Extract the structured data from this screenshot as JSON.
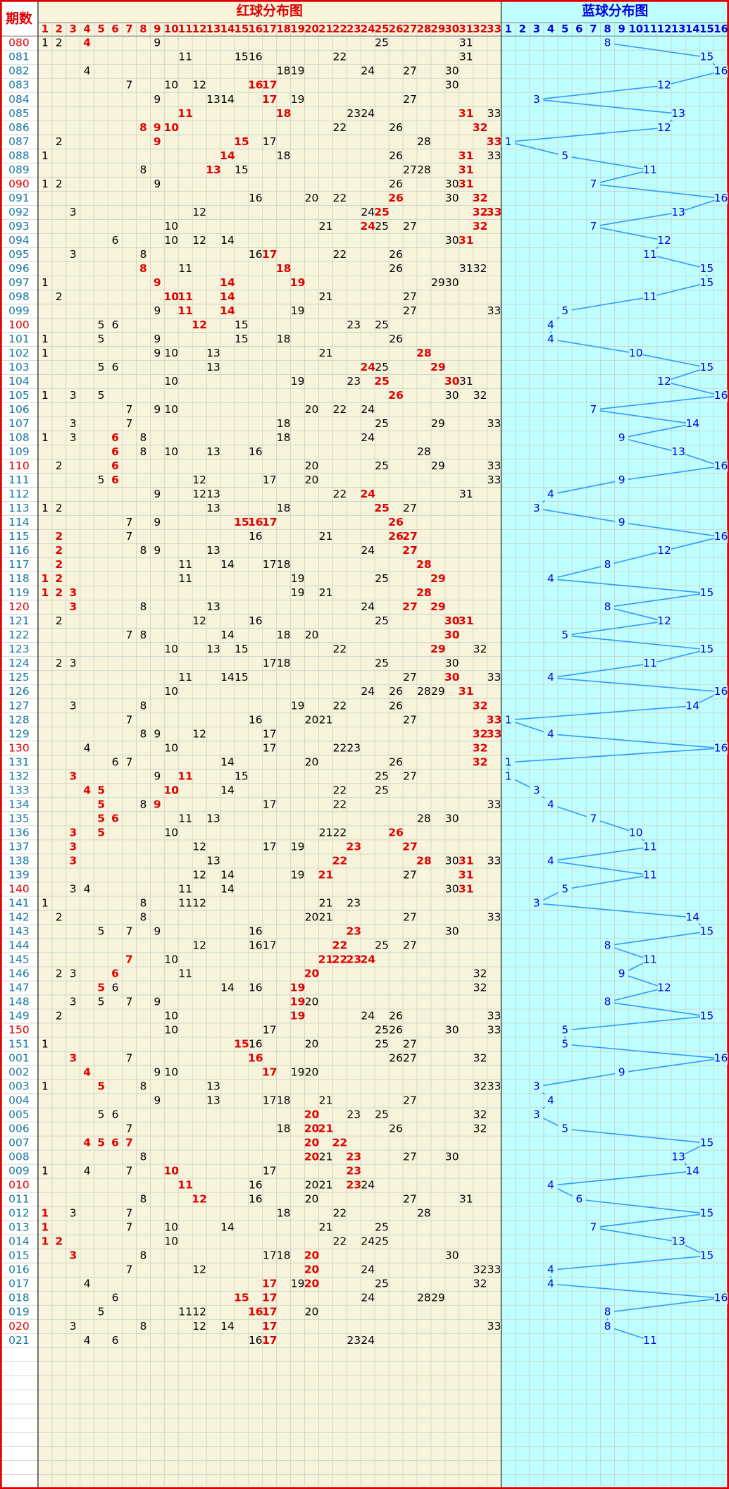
{
  "header": {
    "period_label": "期数",
    "red_title": "红球分布图",
    "blue_title": "蓝球分布图"
  },
  "red_columns": [
    1,
    2,
    3,
    4,
    5,
    6,
    7,
    8,
    9,
    10,
    11,
    12,
    13,
    14,
    15,
    16,
    17,
    18,
    19,
    20,
    21,
    22,
    23,
    24,
    25,
    26,
    27,
    28,
    29,
    30,
    31,
    32,
    33
  ],
  "blue_columns": [
    1,
    2,
    3,
    4,
    5,
    6,
    7,
    8,
    9,
    10,
    11,
    12,
    13,
    14,
    15,
    16
  ],
  "colors": {
    "red_area": "#f8f4dc",
    "blue_area": "#c0ffff",
    "grid": "#c6d2c6",
    "red_text": "#e00000",
    "blue_text": "#0000e0",
    "normal": "#000000",
    "period": "#1878a0",
    "line": "#3399ff",
    "border": "#e00000"
  },
  "rows": [
    {
      "period": "080",
      "reds": [
        1,
        2,
        4,
        9,
        25,
        31
      ],
      "highlight": [
        2
      ],
      "blue": 8,
      "period_highlight": true
    },
    {
      "period": "081",
      "reds": [
        11,
        15,
        16,
        22,
        31
      ],
      "highlight": [],
      "blue": 15
    },
    {
      "period": "082",
      "reds": [
        4,
        18,
        19,
        24,
        27,
        30
      ],
      "highlight": [],
      "blue": 16
    },
    {
      "period": "083",
      "reds": [
        7,
        10,
        12,
        16,
        17,
        30
      ],
      "highlight": [
        3,
        4
      ],
      "blue": 12
    },
    {
      "period": "084",
      "reds": [
        9,
        13,
        14,
        17,
        19,
        27
      ],
      "highlight": [
        3
      ],
      "blue": 3
    },
    {
      "period": "085",
      "reds": [
        11,
        18,
        23,
        24,
        31,
        33
      ],
      "highlight": [
        0,
        1,
        4
      ],
      "blue": 13
    },
    {
      "period": "086",
      "reds": [
        8,
        9,
        10,
        22,
        26,
        32
      ],
      "highlight": [
        0,
        1,
        2,
        5
      ],
      "blue": 12
    },
    {
      "period": "087",
      "reds": [
        2,
        9,
        15,
        17,
        28,
        33
      ],
      "highlight": [
        1,
        2,
        5
      ],
      "blue": 1
    },
    {
      "period": "088",
      "reds": [
        1,
        14,
        18,
        26,
        31,
        33
      ],
      "highlight": [
        1,
        4
      ],
      "blue": 5
    },
    {
      "period": "089",
      "reds": [
        8,
        13,
        15,
        27,
        28,
        31
      ],
      "highlight": [
        1,
        5
      ],
      "blue": 11
    },
    {
      "period": "090",
      "reds": [
        1,
        2,
        9,
        26,
        30,
        31
      ],
      "highlight": [
        5
      ],
      "blue": 7,
      "period_highlight": true
    },
    {
      "period": "091",
      "reds": [
        16,
        20,
        22,
        26,
        30,
        32
      ],
      "highlight": [
        3,
        5
      ],
      "blue": 16
    },
    {
      "period": "092",
      "reds": [
        3,
        12,
        24,
        25,
        32,
        33
      ],
      "highlight": [
        3,
        4,
        5
      ],
      "blue": 13
    },
    {
      "period": "093",
      "reds": [
        10,
        21,
        24,
        25,
        27,
        32
      ],
      "highlight": [
        2,
        5
      ],
      "blue": 7
    },
    {
      "period": "094",
      "reds": [
        6,
        10,
        12,
        14,
        30,
        31
      ],
      "highlight": [
        5
      ],
      "blue": 12
    },
    {
      "period": "095",
      "reds": [
        3,
        8,
        16,
        17,
        22,
        26
      ],
      "highlight": [
        3
      ],
      "blue": 11
    },
    {
      "period": "096",
      "reds": [
        8,
        11,
        18,
        26,
        31,
        32
      ],
      "highlight": [
        0,
        2
      ],
      "blue": 15
    },
    {
      "period": "097",
      "reds": [
        1,
        9,
        14,
        19,
        29,
        30
      ],
      "highlight": [
        1,
        2,
        3
      ],
      "blue": 15
    },
    {
      "period": "098",
      "reds": [
        2,
        10,
        11,
        14,
        21,
        27
      ],
      "highlight": [
        1,
        2,
        3
      ],
      "blue": 11
    },
    {
      "period": "099",
      "reds": [
        9,
        11,
        14,
        19,
        27,
        33
      ],
      "highlight": [
        1,
        2
      ],
      "blue": 5
    },
    {
      "period": "100",
      "reds": [
        5,
        6,
        12,
        15,
        23,
        25
      ],
      "highlight": [
        2
      ],
      "blue": 4,
      "period_highlight": true
    },
    {
      "period": "101",
      "reds": [
        1,
        5,
        9,
        15,
        18,
        26
      ],
      "highlight": [],
      "blue": 4
    },
    {
      "period": "102",
      "reds": [
        1,
        9,
        10,
        13,
        21,
        28
      ],
      "highlight": [
        5
      ],
      "blue": 10
    },
    {
      "period": "103",
      "reds": [
        5,
        6,
        13,
        24,
        25,
        29
      ],
      "highlight": [
        3,
        5
      ],
      "blue": 15
    },
    {
      "period": "104",
      "reds": [
        10,
        19,
        23,
        25,
        30,
        31
      ],
      "highlight": [
        3,
        4
      ],
      "blue": 12
    },
    {
      "period": "105",
      "reds": [
        1,
        3,
        5,
        26,
        30,
        32
      ],
      "highlight": [
        3
      ],
      "blue": 16
    },
    {
      "period": "106",
      "reds": [
        7,
        9,
        10,
        20,
        22,
        24
      ],
      "highlight": [],
      "blue": 7
    },
    {
      "period": "107",
      "reds": [
        3,
        7,
        18,
        25,
        29,
        33
      ],
      "highlight": [],
      "blue": 14
    },
    {
      "period": "108",
      "reds": [
        1,
        3,
        6,
        8,
        18,
        24
      ],
      "highlight": [
        2
      ],
      "blue": 9
    },
    {
      "period": "109",
      "reds": [
        6,
        8,
        10,
        13,
        16,
        28
      ],
      "highlight": [
        0
      ],
      "blue": 13
    },
    {
      "period": "110",
      "reds": [
        2,
        6,
        20,
        25,
        29,
        33
      ],
      "highlight": [
        1
      ],
      "blue": 16,
      "period_highlight": true
    },
    {
      "period": "111",
      "reds": [
        5,
        6,
        12,
        17,
        20,
        33
      ],
      "highlight": [
        1
      ],
      "blue": 9
    },
    {
      "period": "112",
      "reds": [
        9,
        12,
        13,
        22,
        24,
        31
      ],
      "highlight": [
        4
      ],
      "blue": 4
    },
    {
      "period": "113",
      "reds": [
        1,
        2,
        13,
        18,
        25,
        27
      ],
      "highlight": [
        4
      ],
      "blue": 3
    },
    {
      "period": "114",
      "reds": [
        7,
        9,
        15,
        16,
        17,
        26
      ],
      "highlight": [
        2,
        3,
        4,
        5
      ],
      "blue": 9
    },
    {
      "period": "115",
      "reds": [
        2,
        7,
        16,
        21,
        26,
        27
      ],
      "highlight": [
        0,
        4,
        5
      ],
      "blue": 16
    },
    {
      "period": "116",
      "reds": [
        2,
        8,
        9,
        13,
        24,
        27
      ],
      "highlight": [
        0,
        5
      ],
      "blue": 12
    },
    {
      "period": "117",
      "reds": [
        2,
        11,
        14,
        17,
        18,
        28
      ],
      "highlight": [
        0,
        5
      ],
      "blue": 8
    },
    {
      "period": "118",
      "reds": [
        1,
        2,
        11,
        19,
        25,
        29
      ],
      "highlight": [
        0,
        1,
        5
      ],
      "blue": 4
    },
    {
      "period": "119",
      "reds": [
        1,
        2,
        3,
        19,
        21,
        28
      ],
      "highlight": [
        0,
        1,
        2,
        5
      ],
      "blue": 15
    },
    {
      "period": "120",
      "reds": [
        3,
        8,
        13,
        24,
        27,
        29
      ],
      "highlight": [
        0,
        4,
        5
      ],
      "blue": 8,
      "period_highlight": true
    },
    {
      "period": "121",
      "reds": [
        2,
        12,
        16,
        25,
        30,
        31
      ],
      "highlight": [
        4,
        5
      ],
      "blue": 12
    },
    {
      "period": "122",
      "reds": [
        7,
        8,
        14,
        18,
        20,
        30
      ],
      "highlight": [
        5
      ],
      "blue": 5
    },
    {
      "period": "123",
      "reds": [
        10,
        13,
        15,
        22,
        29,
        32
      ],
      "highlight": [
        4
      ],
      "blue": 15
    },
    {
      "period": "124",
      "reds": [
        2,
        3,
        17,
        18,
        25,
        30
      ],
      "highlight": [],
      "blue": 11
    },
    {
      "period": "125",
      "reds": [
        11,
        14,
        15,
        27,
        30,
        33
      ],
      "highlight": [
        4
      ],
      "blue": 4
    },
    {
      "period": "126",
      "reds": [
        10,
        24,
        26,
        28,
        29,
        31
      ],
      "highlight": [
        5
      ],
      "blue": 16
    },
    {
      "period": "127",
      "reds": [
        3,
        8,
        19,
        22,
        26,
        32
      ],
      "highlight": [
        5
      ],
      "blue": 14
    },
    {
      "period": "128",
      "reds": [
        7,
        16,
        20,
        21,
        27,
        33
      ],
      "highlight": [
        5
      ],
      "blue": 1
    },
    {
      "period": "129",
      "reds": [
        8,
        9,
        12,
        17,
        32,
        33
      ],
      "highlight": [
        4,
        5
      ],
      "blue": 4
    },
    {
      "period": "130",
      "reds": [
        4,
        10,
        17,
        22,
        23,
        32
      ],
      "highlight": [
        5
      ],
      "blue": 16,
      "period_highlight": true
    },
    {
      "period": "131",
      "reds": [
        6,
        7,
        14,
        20,
        26,
        32
      ],
      "highlight": [
        5
      ],
      "blue": 1
    },
    {
      "period": "132",
      "reds": [
        3,
        9,
        11,
        15,
        25,
        27
      ],
      "highlight": [
        0,
        2
      ],
      "blue": 1
    },
    {
      "period": "133",
      "reds": [
        4,
        5,
        10,
        14,
        22,
        25
      ],
      "highlight": [
        0,
        1,
        2
      ],
      "blue": 3
    },
    {
      "period": "134",
      "reds": [
        5,
        8,
        9,
        17,
        22,
        33
      ],
      "highlight": [
        0,
        2
      ],
      "blue": 4
    },
    {
      "period": "135",
      "reds": [
        5,
        6,
        11,
        13,
        28,
        30
      ],
      "highlight": [
        0,
        1
      ],
      "blue": 7
    },
    {
      "period": "136",
      "reds": [
        3,
        5,
        10,
        21,
        22,
        26
      ],
      "highlight": [
        0,
        1,
        5
      ],
      "blue": 10
    },
    {
      "period": "137",
      "reds": [
        3,
        12,
        17,
        19,
        23,
        27
      ],
      "highlight": [
        0,
        4,
        5
      ],
      "blue": 11
    },
    {
      "period": "138",
      "reds": [
        3,
        13,
        22,
        28,
        30,
        31,
        33
      ],
      "highlight": [
        0,
        2,
        3,
        5
      ],
      "blue": 4
    },
    {
      "period": "139",
      "reds": [
        12,
        14,
        19,
        21,
        27,
        31
      ],
      "highlight": [
        3,
        5
      ],
      "blue": 11
    },
    {
      "period": "140",
      "reds": [
        3,
        4,
        11,
        14,
        30,
        31
      ],
      "highlight": [
        5
      ],
      "blue": 5,
      "period_highlight": true
    },
    {
      "period": "141",
      "reds": [
        1,
        8,
        11,
        12,
        21,
        23
      ],
      "highlight": [],
      "blue": 3
    },
    {
      "period": "142",
      "reds": [
        2,
        8,
        20,
        21,
        27,
        33
      ],
      "highlight": [],
      "blue": 14
    },
    {
      "period": "143",
      "reds": [
        5,
        7,
        9,
        16,
        23,
        30
      ],
      "highlight": [
        4
      ],
      "blue": 15
    },
    {
      "period": "144",
      "reds": [
        12,
        16,
        17,
        22,
        25,
        27
      ],
      "highlight": [
        3
      ],
      "blue": 8
    },
    {
      "period": "145",
      "reds": [
        7,
        10,
        21,
        22,
        23,
        24
      ],
      "highlight": [
        0,
        2,
        3,
        4,
        5
      ],
      "blue": 11
    },
    {
      "period": "146",
      "reds": [
        2,
        3,
        6,
        11,
        20,
        32
      ],
      "highlight": [
        2,
        4
      ],
      "blue": 9
    },
    {
      "period": "147",
      "reds": [
        5,
        6,
        14,
        16,
        19,
        32
      ],
      "highlight": [
        0,
        4
      ],
      "blue": 12
    },
    {
      "period": "148",
      "reds": [
        3,
        5,
        7,
        9,
        19,
        20
      ],
      "highlight": [
        4
      ],
      "blue": 8
    },
    {
      "period": "149",
      "reds": [
        2,
        10,
        19,
        24,
        26,
        33
      ],
      "highlight": [
        2
      ],
      "blue": 15
    },
    {
      "period": "150",
      "reds": [
        10,
        17,
        25,
        26,
        30,
        33
      ],
      "highlight": [],
      "blue": 5,
      "period_highlight": true
    },
    {
      "period": "151",
      "reds": [
        1,
        15,
        16,
        20,
        25,
        27
      ],
      "highlight": [
        1
      ],
      "blue": 5
    },
    {
      "period": "001",
      "reds": [
        3,
        7,
        16,
        26,
        27,
        32
      ],
      "highlight": [
        0,
        2
      ],
      "blue": 16
    },
    {
      "period": "002",
      "reds": [
        4,
        9,
        10,
        17,
        19,
        20
      ],
      "highlight": [
        0,
        3
      ],
      "blue": 9
    },
    {
      "period": "003",
      "reds": [
        1,
        5,
        8,
        13,
        32,
        33
      ],
      "highlight": [
        1
      ],
      "blue": 3
    },
    {
      "period": "004",
      "reds": [
        9,
        13,
        17,
        18,
        21,
        27
      ],
      "highlight": [],
      "blue": 4
    },
    {
      "period": "005",
      "reds": [
        5,
        6,
        20,
        23,
        25,
        32
      ],
      "highlight": [
        2
      ],
      "blue": 3
    },
    {
      "period": "006",
      "reds": [
        7,
        18,
        20,
        21,
        26,
        32
      ],
      "highlight": [
        2,
        3
      ],
      "blue": 5
    },
    {
      "period": "007",
      "reds": [
        4,
        5,
        6,
        7,
        20,
        22
      ],
      "highlight": [
        0,
        1,
        2,
        3,
        4,
        5
      ],
      "blue": 15
    },
    {
      "period": "008",
      "reds": [
        8,
        20,
        21,
        23,
        27,
        30
      ],
      "highlight": [
        1,
        3
      ],
      "blue": 13
    },
    {
      "period": "009",
      "reds": [
        1,
        4,
        7,
        10,
        17,
        23
      ],
      "highlight": [
        3,
        5
      ],
      "blue": 14
    },
    {
      "period": "010",
      "reds": [
        11,
        16,
        20,
        21,
        23,
        24
      ],
      "highlight": [
        0,
        4
      ],
      "blue": 4,
      "period_highlight": true
    },
    {
      "period": "011",
      "reds": [
        8,
        12,
        16,
        20,
        27,
        31
      ],
      "highlight": [
        1
      ],
      "blue": 6
    },
    {
      "period": "012",
      "reds": [
        1,
        3,
        7,
        18,
        22,
        28
      ],
      "highlight": [
        0
      ],
      "blue": 15
    },
    {
      "period": "013",
      "reds": [
        1,
        7,
        10,
        14,
        21,
        25
      ],
      "highlight": [
        0
      ],
      "blue": 7
    },
    {
      "period": "014",
      "reds": [
        1,
        2,
        10,
        22,
        24,
        25
      ],
      "highlight": [
        0,
        1
      ],
      "blue": 13
    },
    {
      "period": "015",
      "reds": [
        3,
        8,
        17,
        18,
        20,
        30
      ],
      "highlight": [
        0,
        4
      ],
      "blue": 15
    },
    {
      "period": "016",
      "reds": [
        7,
        12,
        20,
        24,
        32,
        33
      ],
      "highlight": [
        2
      ],
      "blue": 4
    },
    {
      "period": "017",
      "reds": [
        4,
        17,
        19,
        20,
        25,
        32
      ],
      "highlight": [
        1,
        3
      ],
      "blue": 4
    },
    {
      "period": "018",
      "reds": [
        6,
        15,
        17,
        24,
        28,
        29
      ],
      "highlight": [
        1,
        2
      ],
      "blue": 16
    },
    {
      "period": "019",
      "reds": [
        5,
        11,
        12,
        16,
        17,
        20
      ],
      "highlight": [
        3,
        4
      ],
      "blue": 8
    },
    {
      "period": "020",
      "reds": [
        3,
        8,
        12,
        14,
        17,
        33
      ],
      "highlight": [
        4
      ],
      "blue": 8,
      "period_highlight": true
    },
    {
      "period": "021",
      "reds": [
        4,
        6,
        16,
        17,
        23,
        24
      ],
      "highlight": [
        3
      ],
      "blue": 11
    }
  ]
}
